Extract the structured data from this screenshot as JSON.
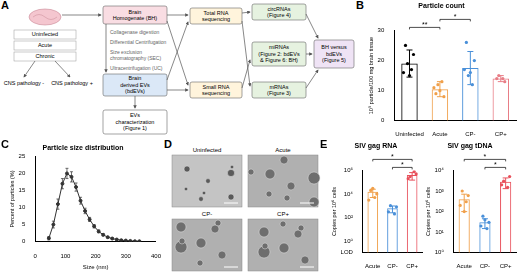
{
  "diagram": {
    "panel": "A",
    "groups": [
      "Uninfected",
      "Acute",
      "Chronic"
    ],
    "pathology": [
      "CNS pathology -",
      "CNS pathology +"
    ],
    "homogenate": "Brain\nHomogenate (BH)",
    "steps": [
      "Collagenase digestion",
      "Differential Centrifugation",
      "Size exclusion\nchromatography (SEC)",
      "Ultracentrifugation (UC)"
    ],
    "evs": "Brain\nderived EVs\n(bdEVs)",
    "characterization": "EVs\ncharacterization\n(Figure 1)",
    "total_rna": "Total RNA\nsequencing",
    "small_rna": "Small RNA\nsequencing",
    "circrnas": "circRNAs\n(Figure 4)",
    "mirnas": "miRNAs\n(Figure 2: bdEVs\n& Figure 6: BH)",
    "mrnas": "mRNAs\n(Figure 3)",
    "comparison": "BH versus\nbdEVs\n(Figure 5)"
  },
  "images": {
    "panel": "D",
    "labels": [
      "Uninfected",
      "Acute",
      "CP-",
      "CP+"
    ]
  },
  "chart_data": [
    {
      "panel": "B",
      "type": "bar",
      "title": "Particle count",
      "y_label": "10⁹ particle/100 mg brain tissue",
      "categories": [
        "Uninfected",
        "Acute",
        "CP-",
        "CP+"
      ],
      "values": [
        19,
        10.5,
        17.5,
        14
      ],
      "errors": [
        4.5,
        2.5,
        5.5,
        1
      ],
      "points": [
        [
          25,
          22,
          19,
          17,
          15,
          16
        ],
        [
          9,
          8,
          12,
          13,
          10,
          11
        ],
        [
          26,
          20,
          15,
          12,
          16,
          17
        ],
        [
          14,
          13,
          15,
          14
        ]
      ],
      "colors": [
        "#000000",
        "#f0a04b",
        "#4a90d9",
        "#e87d86"
      ],
      "ylim": [
        0,
        30
      ],
      "yticks": [
        0,
        10,
        20,
        30
      ],
      "grid": false,
      "significance": [
        {
          "from": "Uninfected",
          "to": "Acute",
          "label": "**"
        },
        {
          "from": "Acute",
          "to": "CP-",
          "label": "*"
        }
      ]
    },
    {
      "panel": "C",
      "type": "line",
      "title": "Particle size distribution",
      "x_label": "Size (nm)",
      "y_label": "Percent of particles (%)",
      "x": [
        45,
        60,
        75,
        90,
        105,
        120,
        135,
        150,
        165,
        180,
        195,
        210,
        225,
        240,
        255,
        270,
        285,
        300,
        315,
        330,
        345
      ],
      "values": [
        1,
        5,
        11,
        17,
        20,
        19,
        16,
        12,
        9,
        6.5,
        4.5,
        3,
        2,
        1.3,
        0.9,
        0.6,
        0.4,
        0.3,
        0.2,
        0.1,
        0.1
      ],
      "errors": [
        0.5,
        1,
        1.5,
        1.5,
        1.5,
        1.5,
        1.2,
        1,
        0.8,
        0.6,
        0.5,
        0.4,
        0.3,
        0.2,
        0.2,
        0.1,
        0.1,
        0.1,
        0.1,
        0.05,
        0.05
      ],
      "color": "#333333",
      "marker": "circle",
      "xlim": [
        0,
        400
      ],
      "xticks": [
        0,
        100,
        200,
        300,
        400
      ],
      "ylim": [
        0,
        25
      ],
      "yticks": [
        0,
        5,
        10,
        15,
        20,
        25
      ],
      "grid": false
    },
    {
      "panel": "E",
      "type": "bar",
      "title": "SIV gag RNA",
      "y_label": "Copies per 10⁶ cells",
      "categories": [
        "Acute",
        "CP-",
        "CP+"
      ],
      "values": [
        15000,
        600,
        400000
      ],
      "errors": [
        10000,
        350,
        250000
      ],
      "points": [
        [
          3000,
          10000,
          20000,
          5000,
          30000
        ],
        [
          300,
          800,
          1000,
          200
        ],
        [
          200000,
          500000,
          300000,
          800000
        ]
      ],
      "colors": [
        "#f0a04b",
        "#4a90d9",
        "#e8505b"
      ],
      "log": "y",
      "ylim": [
        0.1,
        1000000
      ],
      "yticks": [
        {
          "value": 0.1,
          "label": "LOD"
        },
        {
          "value": 1,
          "label": "10⁰"
        },
        {
          "value": 100,
          "label": "10²"
        },
        {
          "value": 10000,
          "label": "10⁴"
        },
        {
          "value": 1000000,
          "label": "10⁶"
        }
      ],
      "grid": false,
      "significance": [
        {
          "from": "CP-",
          "to": "CP+",
          "label": "*"
        },
        {
          "from": "Acute",
          "to": "CP+",
          "label": "*"
        }
      ]
    },
    {
      "type": "bar",
      "title": "SIV gag tDNA",
      "y_label": "Copies per 10⁶ cells",
      "categories": [
        "Acute",
        "CP-",
        "CP+"
      ],
      "values": [
        400,
        30,
        2800
      ],
      "errors": [
        300,
        15,
        1500
      ],
      "points": [
        [
          200,
          600,
          1000,
          300,
          100
        ],
        [
          20,
          30,
          60,
          15,
          40
        ],
        [
          2000,
          5000,
          3000,
          1500
        ]
      ],
      "colors": [
        "#f0a04b",
        "#4a90d9",
        "#e8505b"
      ],
      "log": "y",
      "ylim": [
        1,
        10000
      ],
      "yticks": [
        {
          "value": 1,
          "label": "10⁰"
        },
        {
          "value": 10,
          "label": "10¹"
        },
        {
          "value": 100,
          "label": "10²"
        },
        {
          "value": 1000,
          "label": "10³"
        },
        {
          "value": 10000,
          "label": "10⁴"
        }
      ],
      "grid": false,
      "significance": [
        {
          "from": "CP-",
          "to": "CP+",
          "label": "*"
        },
        {
          "from": "Acute",
          "to": "CP+",
          "label": "*"
        }
      ]
    }
  ]
}
